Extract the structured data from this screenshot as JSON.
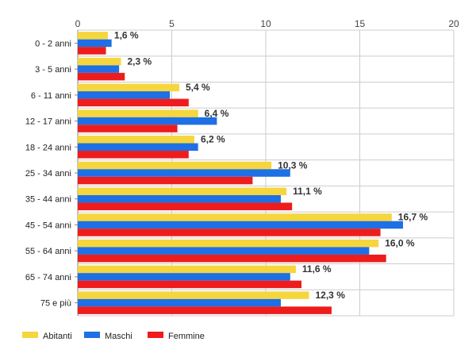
{
  "chart_data": {
    "type": "bar",
    "orientation": "horizontal",
    "categories": [
      "0 - 2 anni",
      "3 - 5 anni",
      "6 - 11 anni",
      "12 - 17 anni",
      "18 - 24 anni",
      "25 - 34 anni",
      "35 - 44 anni",
      "45 - 54 anni",
      "55 - 64 anni",
      "65 - 74 anni",
      "75 e più"
    ],
    "series": [
      {
        "name": "Abitanti",
        "color": "#f5d63d",
        "values": [
          1.6,
          2.3,
          5.4,
          6.4,
          6.2,
          10.3,
          11.1,
          16.7,
          16.0,
          11.6,
          12.3
        ]
      },
      {
        "name": "Maschi",
        "color": "#1f6fe5",
        "values": [
          1.8,
          2.2,
          4.9,
          7.4,
          6.4,
          11.3,
          10.8,
          17.3,
          15.5,
          11.3,
          10.8
        ]
      },
      {
        "name": "Femmine",
        "color": "#ee1c1c",
        "values": [
          1.5,
          2.5,
          5.9,
          5.3,
          5.9,
          9.3,
          11.4,
          16.1,
          16.4,
          11.9,
          13.5
        ]
      }
    ],
    "data_labels": [
      "1,6 %",
      "2,3 %",
      "5,4 %",
      "6,4 %",
      "6,2 %",
      "10,3 %",
      "11,1 %",
      "16,7 %",
      "16,0 %",
      "11,6 %",
      "12,3 %"
    ],
    "x_ticks": [
      "0",
      "5",
      "10",
      "15",
      "20"
    ],
    "xlim": [
      0,
      20
    ],
    "x_axis_position": "top",
    "grid": true,
    "legend_position": "bottom-left"
  }
}
